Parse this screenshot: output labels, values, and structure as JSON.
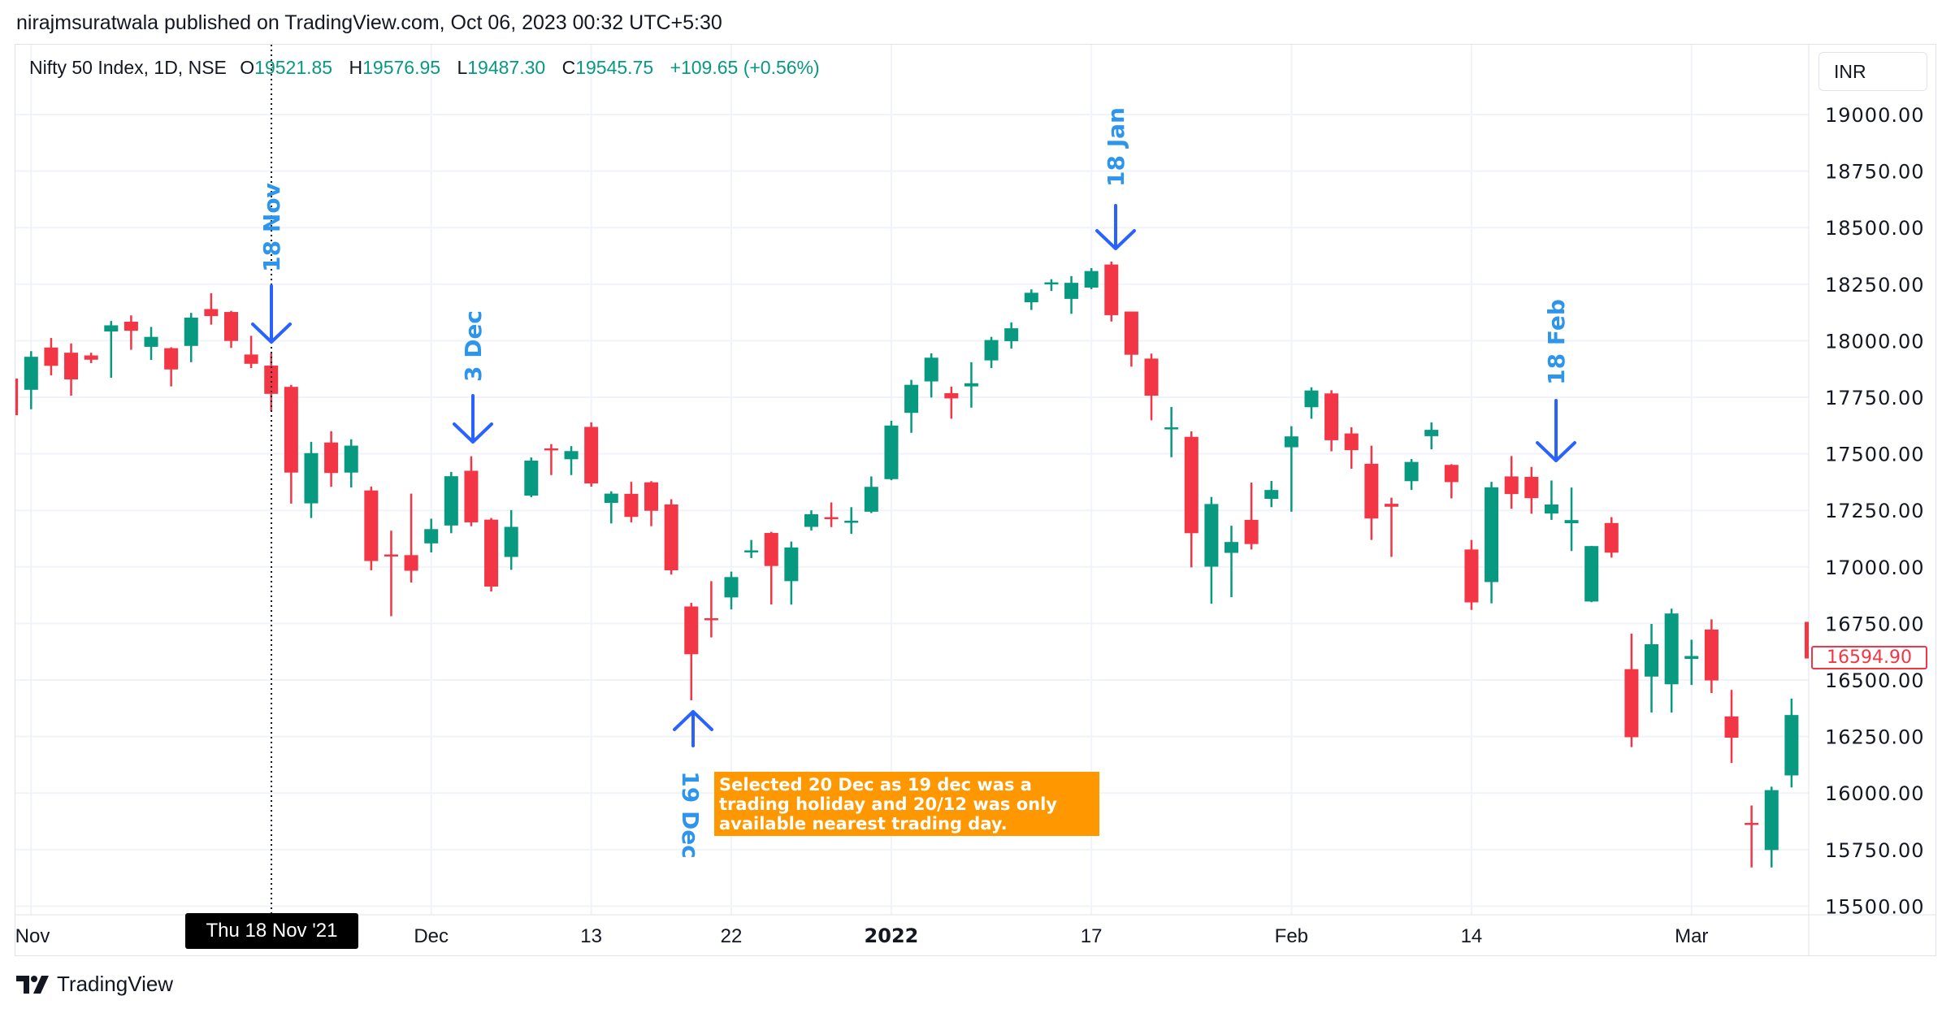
{
  "published": "nirajmsuratwala published on TradingView.com, Oct 06, 2023 00:32 UTC+5:30",
  "legend": {
    "symbol": "Nifty 50 Index, 1D, NSE",
    "o_label": "O",
    "o": "19521.85",
    "h_label": "H",
    "h": "19576.95",
    "l_label": "L",
    "l": "19487.30",
    "c_label": "C",
    "c": "19545.75",
    "change": "+109.65 (+0.56%)"
  },
  "currency": "INR",
  "last_price": "16594.90",
  "crosshair_label": "Thu 18 Nov '21",
  "annotations": {
    "nov18": "18 Nov",
    "dec3": "3 Dec",
    "dec19": "19 Dec",
    "jan18": "18 Jan",
    "feb18": "18 Feb",
    "note": "Selected 20 Dec as 19 dec was a trading holiday and 20/12 was only available nearest trading day."
  },
  "footer": {
    "brand": "TradingView"
  },
  "colors": {
    "up": "#089981",
    "down": "#f23645",
    "arrow": "#2962ff",
    "label": "#2e95ec",
    "note_bg": "#ff9800"
  },
  "chart_data": {
    "type": "candlestick",
    "title": "",
    "ylim": [
      15500,
      19000
    ],
    "y_ticks": [
      "19000.00",
      "18750.00",
      "18500.00",
      "18250.00",
      "18000.00",
      "17750.00",
      "17500.00",
      "17250.00",
      "17000.00",
      "16750.00",
      "16500.00",
      "16250.00",
      "16000.00",
      "15750.00",
      "15500.00"
    ],
    "x_ticks": [
      {
        "date": "2021-11-01",
        "label": "Nov",
        "bold": false
      },
      {
        "date": "2021-12-01",
        "label": "Dec",
        "bold": false
      },
      {
        "date": "2021-12-13",
        "label": "13",
        "bold": false
      },
      {
        "date": "2021-12-22",
        "label": "22",
        "bold": false
      },
      {
        "date": "2022-01-03",
        "label": "2022",
        "bold": true
      },
      {
        "date": "2022-01-17",
        "label": "17",
        "bold": false
      },
      {
        "date": "2022-02-01",
        "label": "Feb",
        "bold": false
      },
      {
        "date": "2022-02-14",
        "label": "14",
        "bold": false
      },
      {
        "date": "2022-03-02",
        "label": "Mar",
        "bold": false
      }
    ],
    "grid": true,
    "columns": [
      "date",
      "open",
      "high",
      "low",
      "close"
    ],
    "candles": [
      [
        "2021-10-29",
        17833,
        17913,
        17613,
        17671
      ],
      [
        "2021-11-01",
        17783,
        17954,
        17697,
        17929
      ],
      [
        "2021-11-02",
        17970,
        18012,
        17847,
        17889
      ],
      [
        "2021-11-03",
        17947,
        17988,
        17757,
        17829
      ],
      [
        "2021-11-04",
        17935,
        17947,
        17901,
        17916
      ],
      [
        "2021-11-08",
        18041,
        18087,
        17836,
        18068
      ],
      [
        "2021-11-09",
        18084,
        18112,
        17960,
        18044
      ],
      [
        "2021-11-10",
        17973,
        18061,
        17915,
        18017
      ],
      [
        "2021-11-11",
        17967,
        17971,
        17798,
        17873
      ],
      [
        "2021-11-12",
        17977,
        18123,
        17905,
        18102
      ],
      [
        "2021-11-15",
        18140,
        18210,
        18071,
        18109
      ],
      [
        "2021-11-16",
        18127,
        18132,
        17968,
        17999
      ],
      [
        "2021-11-17",
        17939,
        18022,
        17879,
        17898
      ],
      [
        "2021-11-18",
        17890,
        17945,
        17688,
        17765
      ],
      [
        "2021-11-22",
        17796,
        17805,
        17280,
        17417
      ],
      [
        "2021-11-23",
        17281,
        17553,
        17216,
        17503
      ],
      [
        "2021-11-24",
        17550,
        17600,
        17354,
        17415
      ],
      [
        "2021-11-25",
        17417,
        17564,
        17351,
        17536
      ],
      [
        "2021-11-26",
        17338,
        17355,
        16985,
        17026
      ],
      [
        "2021-11-29",
        17055,
        17160,
        16782,
        17053
      ],
      [
        "2021-11-30",
        17052,
        17324,
        16931,
        16983
      ],
      [
        "2021-12-01",
        17104,
        17213,
        17064,
        17167
      ],
      [
        "2021-12-02",
        17183,
        17420,
        17149,
        17401
      ],
      [
        "2021-12-03",
        17425,
        17489,
        17180,
        17197
      ],
      [
        "2021-12-06",
        17209,
        17216,
        16891,
        16913
      ],
      [
        "2021-12-07",
        17044,
        17251,
        16987,
        17177
      ],
      [
        "2021-12-08",
        17315,
        17484,
        17308,
        17470
      ],
      [
        "2021-12-09",
        17524,
        17543,
        17406,
        17517
      ],
      [
        "2021-12-10",
        17476,
        17534,
        17406,
        17512
      ],
      [
        "2021-12-13",
        17619,
        17639,
        17355,
        17369
      ],
      [
        "2021-12-14",
        17283,
        17334,
        17192,
        17324
      ],
      [
        "2021-12-15",
        17323,
        17376,
        17197,
        17221
      ],
      [
        "2021-12-16",
        17374,
        17379,
        17180,
        17248
      ],
      [
        "2021-12-17",
        17276,
        17299,
        16966,
        16985
      ],
      [
        "2021-12-20",
        16825,
        16841,
        16410,
        16614
      ],
      [
        "2021-12-21",
        16773,
        16937,
        16688,
        16771
      ],
      [
        "2021-12-22",
        16865,
        16979,
        16812,
        16955
      ],
      [
        "2021-12-23",
        17066,
        17119,
        17039,
        17073
      ],
      [
        "2021-12-24",
        17150,
        17155,
        16834,
        17004
      ],
      [
        "2021-12-27",
        16937,
        17112,
        16833,
        17086
      ],
      [
        "2021-12-28",
        17177,
        17250,
        17161,
        17233
      ],
      [
        "2021-12-29",
        17220,
        17285,
        17176,
        17214
      ],
      [
        "2021-12-30",
        17201,
        17264,
        17146,
        17204
      ],
      [
        "2021-12-31",
        17244,
        17400,
        17238,
        17354
      ],
      [
        "2022-01-03",
        17388,
        17646,
        17383,
        17625
      ],
      [
        "2022-01-04",
        17681,
        17827,
        17593,
        17805
      ],
      [
        "2022-01-05",
        17820,
        17944,
        17749,
        17925
      ],
      [
        "2022-01-06",
        17768,
        17797,
        17655,
        17745
      ],
      [
        "2022-01-07",
        17798,
        17905,
        17704,
        17812
      ],
      [
        "2022-01-10",
        17913,
        18017,
        17879,
        18003
      ],
      [
        "2022-01-11",
        17998,
        18081,
        17965,
        18055
      ],
      [
        "2022-01-12",
        18170,
        18227,
        18136,
        18212
      ],
      [
        "2022-01-13",
        18257,
        18272,
        18220,
        18258
      ],
      [
        "2022-01-14",
        18185,
        18286,
        18119,
        18256
      ],
      [
        "2022-01-17",
        18235,
        18321,
        18228,
        18308
      ],
      [
        "2022-01-18",
        18337,
        18350,
        18085,
        18113
      ],
      [
        "2022-01-19",
        18129,
        18129,
        17885,
        17938
      ],
      [
        "2022-01-20",
        17921,
        17943,
        17648,
        17757
      ],
      [
        "2022-01-21",
        17614,
        17707,
        17485,
        17617
      ],
      [
        "2022-01-24",
        17575,
        17599,
        16998,
        17149
      ],
      [
        "2022-01-25",
        17001,
        17309,
        16837,
        17278
      ],
      [
        "2022-01-27",
        17062,
        17182,
        16866,
        17110
      ],
      [
        "2022-01-28",
        17208,
        17373,
        17077,
        17101
      ],
      [
        "2022-01-31",
        17301,
        17380,
        17264,
        17340
      ],
      [
        "2022-02-01",
        17529,
        17622,
        17244,
        17577
      ],
      [
        "2022-02-02",
        17706,
        17794,
        17655,
        17780
      ],
      [
        "2022-02-03",
        17767,
        17781,
        17511,
        17560
      ],
      [
        "2022-02-04",
        17590,
        17617,
        17434,
        17516
      ],
      [
        "2022-02-07",
        17456,
        17536,
        17119,
        17214
      ],
      [
        "2022-02-08",
        17279,
        17306,
        17044,
        17266
      ],
      [
        "2022-02-09",
        17379,
        17477,
        17340,
        17464
      ],
      [
        "2022-02-10",
        17578,
        17639,
        17520,
        17606
      ],
      [
        "2022-02-11",
        17451,
        17454,
        17303,
        17375
      ],
      [
        "2022-02-14",
        17077,
        17119,
        16810,
        16843
      ],
      [
        "2022-02-15",
        16933,
        17376,
        16839,
        17352
      ],
      [
        "2022-02-16",
        17400,
        17490,
        17257,
        17322
      ],
      [
        "2022-02-17",
        17398,
        17442,
        17235,
        17304
      ],
      [
        "2022-02-18",
        17236,
        17382,
        17208,
        17276
      ],
      [
        "2022-02-21",
        17193,
        17351,
        17070,
        17207
      ],
      [
        "2022-02-22",
        16847,
        17093,
        16844,
        17092
      ],
      [
        "2022-02-23",
        17194,
        17220,
        17041,
        17063
      ],
      [
        "2022-02-24",
        16548,
        16705,
        16203,
        16247
      ],
      [
        "2022-02-25",
        16515,
        16748,
        16356,
        16658
      ],
      [
        "2022-02-28",
        16481,
        16815,
        16356,
        16794
      ],
      [
        "2022-03-02",
        16593,
        16678,
        16478,
        16606
      ],
      [
        "2022-03-03",
        16723,
        16768,
        16442,
        16498
      ],
      [
        "2022-03-04",
        16339,
        16456,
        16133,
        16245
      ],
      [
        "2022-03-07",
        15868,
        15945,
        15671,
        15863
      ],
      [
        "2022-03-08",
        15748,
        16028,
        15671,
        16013
      ],
      [
        "2022-03-09",
        16078,
        16418,
        16025,
        16345
      ],
      [
        "2022-03-10",
        16757,
        16757,
        16447,
        16595
      ]
    ]
  }
}
